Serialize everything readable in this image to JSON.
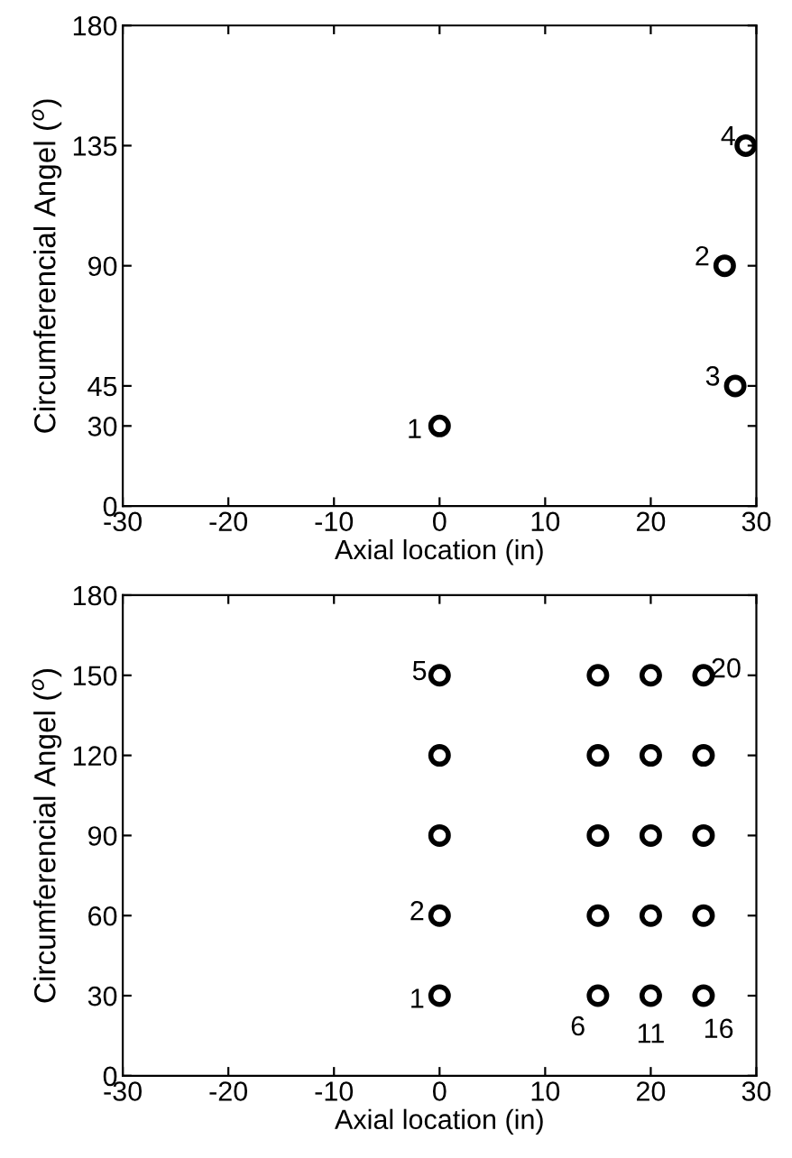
{
  "chart_data": [
    {
      "type": "scatter",
      "xlabel": "Axial location (in)",
      "ylabel": "Circumferencial Angel ($^{o}$)",
      "series": [
        {
          "color": "#000000",
          "x": [
            0,
            27,
            28,
            29
          ],
          "values": [
            30,
            90,
            45,
            135
          ]
        }
      ],
      "marker": "circle",
      "xlim": [
        -30,
        30
      ],
      "ylim": [
        0,
        180
      ],
      "xticks": [
        -30,
        -20,
        -10,
        0,
        10,
        20,
        30
      ],
      "yticks": [
        0,
        30,
        45,
        90,
        135,
        180
      ],
      "grid": false,
      "annotations": [
        {
          "text": "1",
          "x": 0,
          "y": 30
        },
        {
          "text": "2",
          "x": 27,
          "y": 90
        },
        {
          "text": "3",
          "x": 28,
          "y": 45
        },
        {
          "text": "4",
          "x": 29,
          "y": 135
        }
      ]
    },
    {
      "type": "scatter",
      "xlabel": "Axial location (in)",
      "ylabel": "Circumferencial Angel ($^{o}$)",
      "series": [
        {
          "color": "#000000",
          "x": [
            0,
            0,
            0,
            0,
            0,
            15,
            15,
            15,
            15,
            15,
            20,
            20,
            20,
            20,
            20,
            25,
            25,
            25,
            25,
            25
          ],
          "values": [
            30,
            60,
            90,
            120,
            150,
            30,
            60,
            90,
            120,
            150,
            30,
            60,
            90,
            120,
            150,
            30,
            60,
            90,
            120,
            150
          ]
        }
      ],
      "marker": "circle",
      "xlim": [
        -30,
        30
      ],
      "ylim": [
        0,
        180
      ],
      "xticks": [
        -30,
        -20,
        -10,
        0,
        10,
        20,
        30
      ],
      "yticks": [
        0,
        30,
        60,
        90,
        120,
        150,
        180
      ],
      "grid": false,
      "annotations": [
        {
          "text": "1",
          "x": 0,
          "y": 30
        },
        {
          "text": "2",
          "x": 0,
          "y": 60
        },
        {
          "text": "5",
          "x": 0,
          "y": 150
        },
        {
          "text": "6",
          "x": 15,
          "y": 30
        },
        {
          "text": "11",
          "x": 20,
          "y": 30
        },
        {
          "text": "16",
          "x": 25,
          "y": 30
        },
        {
          "text": "20",
          "x": 25,
          "y": 150
        }
      ]
    }
  ]
}
